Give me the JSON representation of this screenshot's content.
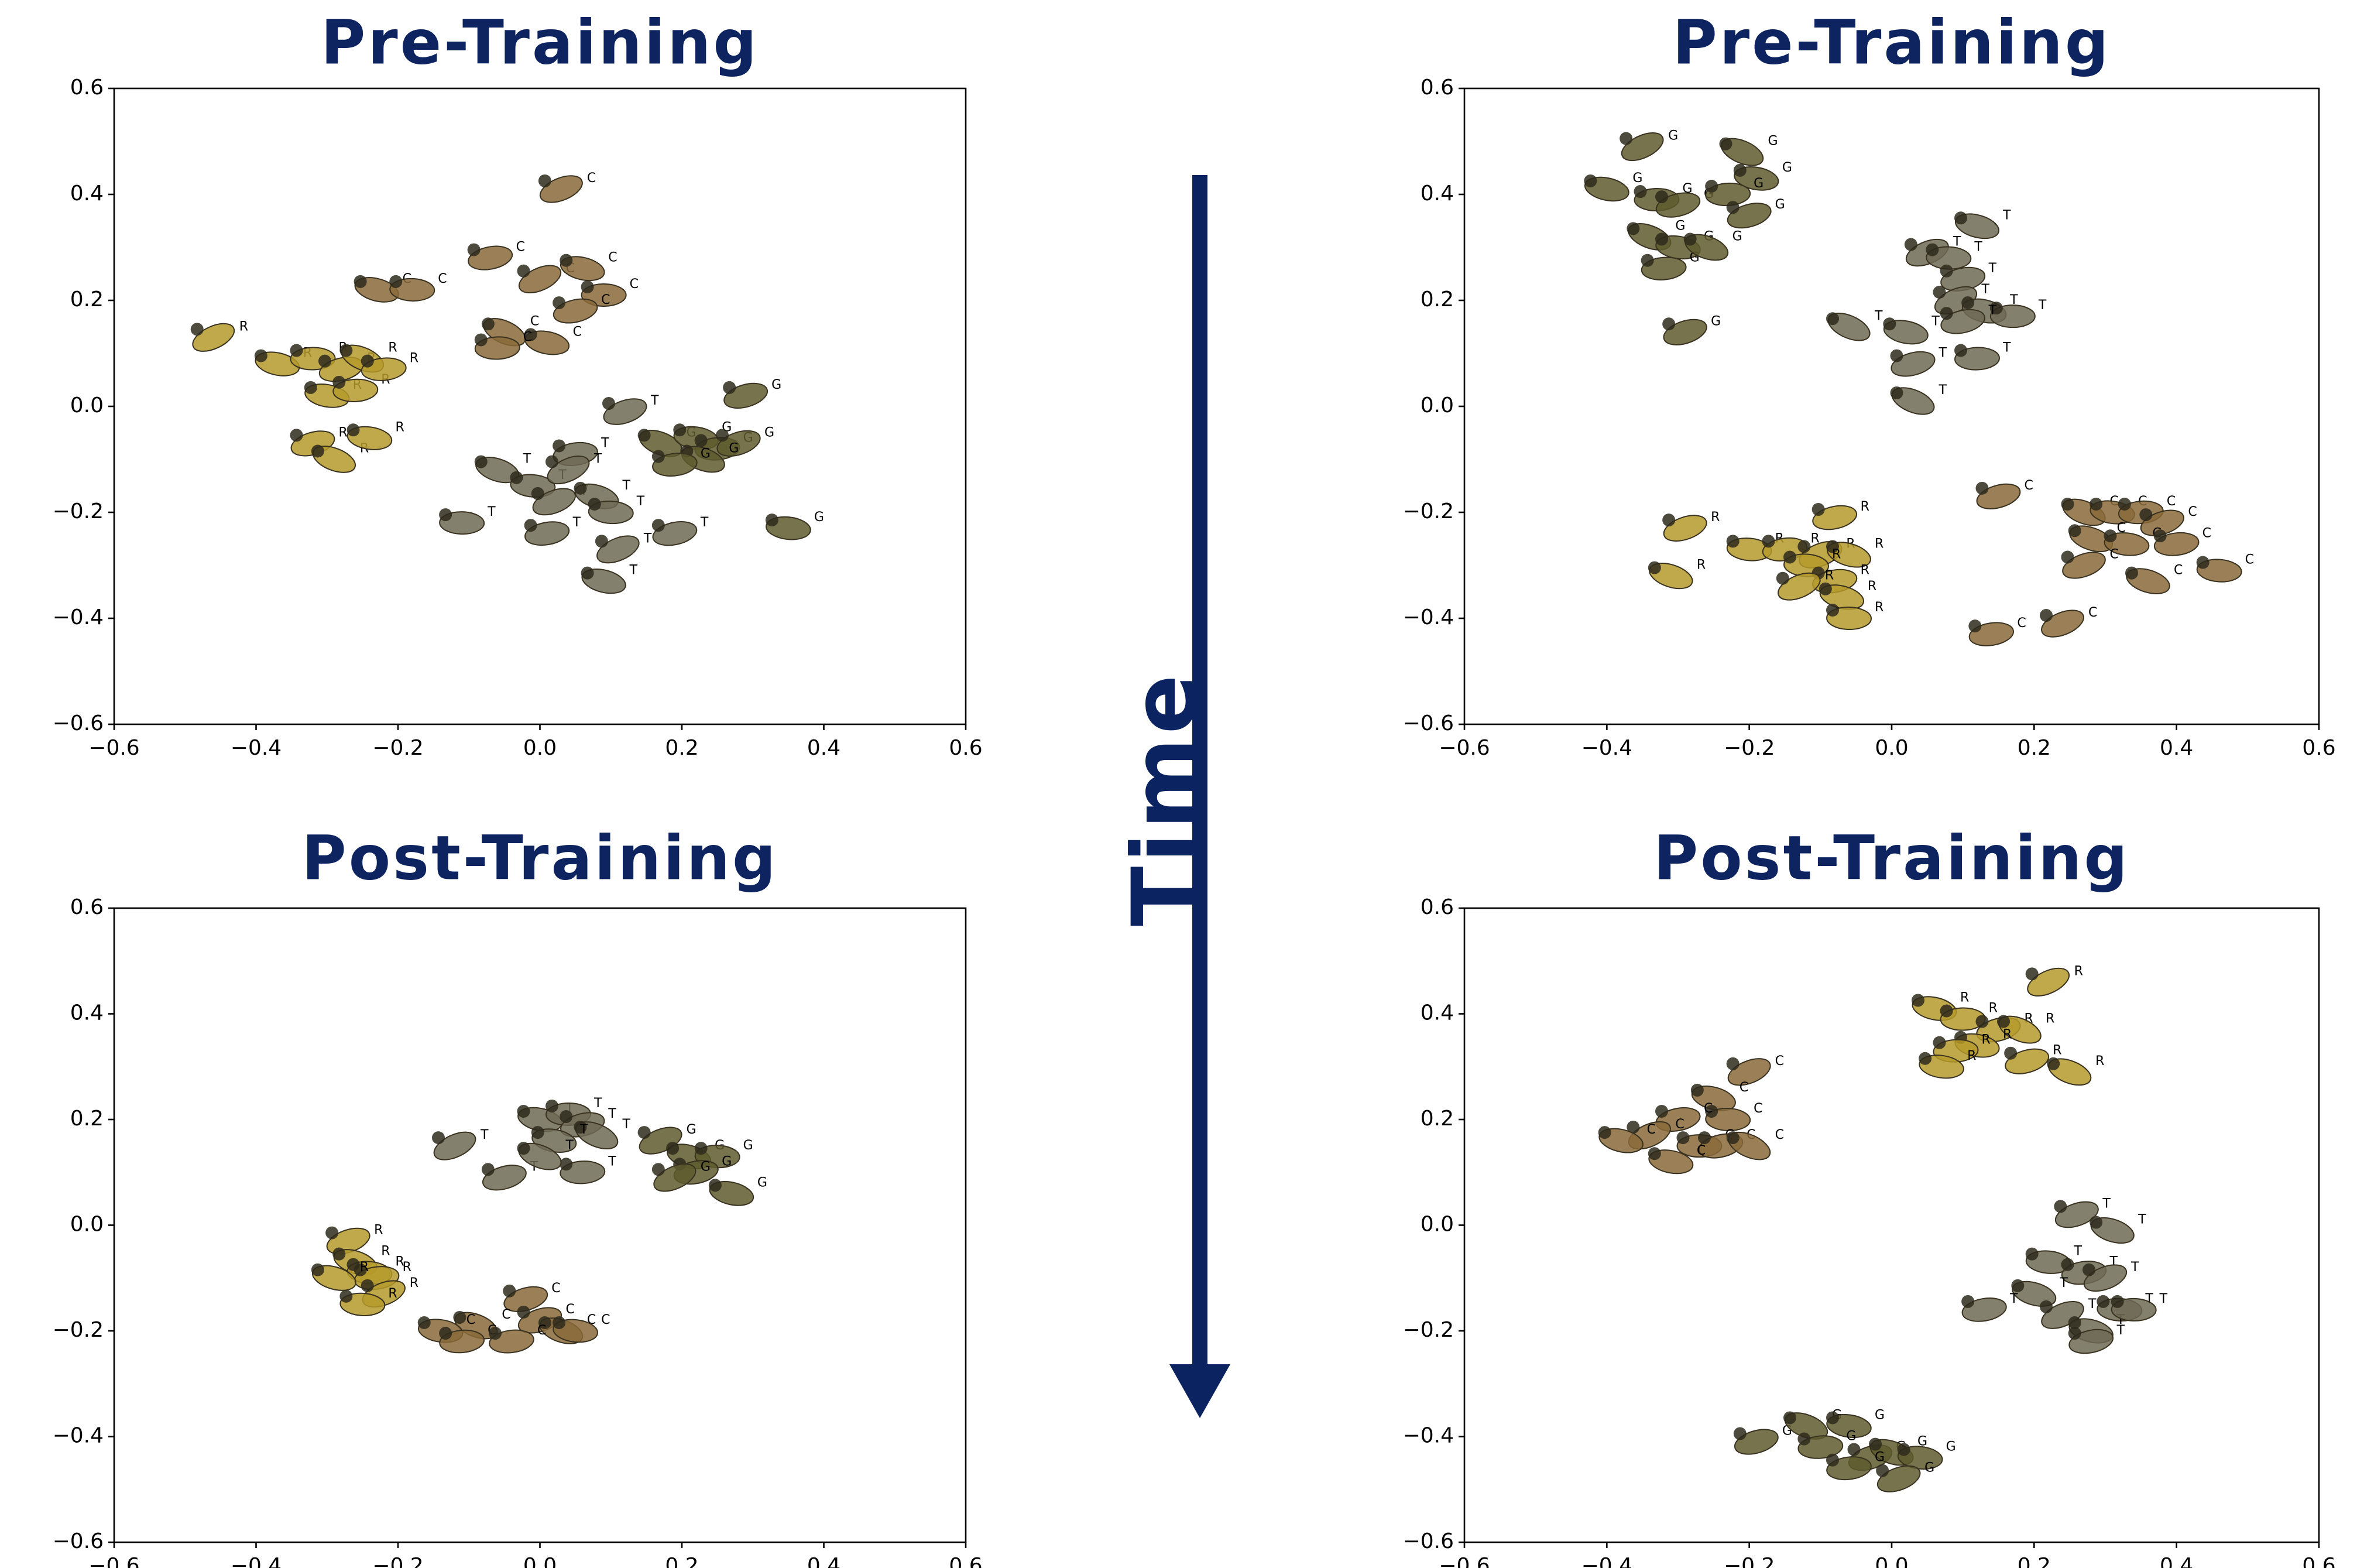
{
  "annotation": "Time",
  "chart_data": [
    {
      "type": "scatter",
      "title": "Pre-Training",
      "xlim": [
        -0.6,
        0.6
      ],
      "ylim": [
        -0.6,
        0.6
      ],
      "xticks": [
        {
          "value": -0.6,
          "label": "−0.6"
        },
        {
          "value": -0.4,
          "label": "−0.4"
        },
        {
          "value": -0.2,
          "label": "−0.2"
        },
        {
          "value": 0,
          "label": "0.0"
        },
        0.2,
        0.4,
        0.6
      ],
      "yticks": [
        {
          "value": -0.6,
          "label": "−0.6"
        },
        {
          "value": -0.4,
          "label": "−0.4"
        },
        {
          "value": -0.2,
          "label": "−0.2"
        },
        {
          "value": 0,
          "label": "0.0"
        },
        0.2,
        0.4,
        0.6
      ],
      "series": [
        {
          "name": "R",
          "color": "#b59a2a",
          "x": [
            -0.46,
            -0.37,
            -0.32,
            -0.28,
            -0.25,
            -0.3,
            -0.26,
            -0.32,
            -0.29,
            -0.24,
            -0.22
          ],
          "values": [
            0.13,
            0.08,
            0.09,
            0.07,
            0.09,
            0.02,
            0.03,
            -0.07,
            -0.1,
            -0.06,
            0.07
          ]
        },
        {
          "name": "C",
          "color": "#8a6a3a",
          "x": [
            0.03,
            -0.23,
            -0.18,
            -0.07,
            0.0,
            0.06,
            0.09,
            0.05,
            -0.05,
            0.01,
            -0.06
          ],
          "values": [
            0.41,
            0.22,
            0.22,
            0.28,
            0.24,
            0.26,
            0.21,
            0.18,
            0.14,
            0.12,
            0.11
          ]
        },
        {
          "name": "T",
          "color": "#6f6a55",
          "x": [
            0.12,
            -0.06,
            -0.01,
            0.05,
            0.02,
            0.08,
            0.1,
            0.01,
            0.11,
            0.09,
            -0.11,
            0.19,
            0.04
          ],
          "values": [
            -0.01,
            -0.12,
            -0.15,
            -0.09,
            -0.18,
            -0.17,
            -0.2,
            -0.24,
            -0.27,
            -0.33,
            -0.22,
            -0.24,
            -0.12
          ]
        },
        {
          "name": "G",
          "color": "#5e5a2e",
          "x": [
            0.29,
            0.17,
            0.22,
            0.25,
            0.28,
            0.23,
            0.35,
            0.19
          ],
          "values": [
            0.02,
            -0.07,
            -0.06,
            -0.08,
            -0.07,
            -0.1,
            -0.23,
            -0.11
          ]
        }
      ]
    },
    {
      "type": "scatter",
      "title": "Pre-Training",
      "xlim": [
        -0.6,
        0.6
      ],
      "ylim": [
        -0.6,
        0.6
      ],
      "xticks": [
        {
          "value": -0.6,
          "label": "−0.6"
        },
        {
          "value": -0.4,
          "label": "−0.4"
        },
        {
          "value": -0.2,
          "label": "−0.2"
        },
        {
          "value": 0,
          "label": "0.0"
        },
        0.2,
        0.4,
        0.6
      ],
      "yticks": [
        {
          "value": -0.6,
          "label": "−0.6"
        },
        {
          "value": -0.4,
          "label": "−0.4"
        },
        {
          "value": -0.2,
          "label": "−0.2"
        },
        {
          "value": 0,
          "label": "0.0"
        },
        0.2,
        0.4,
        0.6
      ],
      "series": [
        {
          "name": "G",
          "color": "#5e5a2e",
          "x": [
            -0.35,
            -0.4,
            -0.33,
            -0.3,
            -0.21,
            -0.19,
            -0.23,
            -0.2,
            -0.34,
            -0.3,
            -0.32,
            -0.29,
            -0.26
          ],
          "values": [
            0.49,
            0.41,
            0.39,
            0.38,
            0.48,
            0.43,
            0.4,
            0.36,
            0.32,
            0.3,
            0.26,
            0.14,
            0.3
          ]
        },
        {
          "name": "T",
          "color": "#6f6a55",
          "x": [
            0.05,
            0.12,
            0.08,
            0.1,
            0.09,
            0.13,
            0.17,
            0.1,
            -0.06,
            0.02,
            0.12,
            0.03,
            0.03
          ],
          "values": [
            0.29,
            0.34,
            0.28,
            0.24,
            0.2,
            0.18,
            0.17,
            0.16,
            0.15,
            0.14,
            0.09,
            0.08,
            0.01
          ]
        },
        {
          "name": "R",
          "color": "#b59a2a",
          "x": [
            -0.29,
            -0.31,
            -0.2,
            -0.15,
            -0.1,
            -0.06,
            -0.12,
            -0.08,
            -0.13,
            -0.07,
            -0.06,
            -0.08
          ],
          "values": [
            -0.23,
            -0.32,
            -0.27,
            -0.27,
            -0.28,
            -0.28,
            -0.3,
            -0.33,
            -0.34,
            -0.36,
            -0.4,
            -0.21
          ]
        },
        {
          "name": "C",
          "color": "#8a6a3a",
          "x": [
            0.15,
            0.27,
            0.31,
            0.35,
            0.38,
            0.28,
            0.33,
            0.4,
            0.27,
            0.36,
            0.46,
            0.14,
            0.24
          ],
          "values": [
            -0.17,
            -0.2,
            -0.2,
            -0.2,
            -0.22,
            -0.25,
            -0.26,
            -0.26,
            -0.3,
            -0.33,
            -0.31,
            -0.43,
            -0.41
          ]
        }
      ]
    },
    {
      "type": "scatter",
      "title": "Post-Training",
      "xlim": [
        -0.6,
        0.6
      ],
      "ylim": [
        -0.6,
        0.6
      ],
      "xticks": [
        {
          "value": -0.6,
          "label": "−0.6"
        },
        {
          "value": -0.4,
          "label": "−0.4"
        },
        {
          "value": -0.2,
          "label": "−0.2"
        },
        {
          "value": 0,
          "label": "0.0"
        },
        0.2,
        0.4,
        0.6
      ],
      "yticks": [
        {
          "value": -0.6,
          "label": "−0.6"
        },
        {
          "value": -0.4,
          "label": "−0.4"
        },
        {
          "value": -0.2,
          "label": "−0.2"
        },
        {
          "value": 0,
          "label": "0.0"
        },
        0.2,
        0.4,
        0.6
      ],
      "series": [
        {
          "name": "T",
          "color": "#6f6a55",
          "x": [
            -0.12,
            0.0,
            0.04,
            0.06,
            0.08,
            0.02,
            0.06,
            -0.05,
            0.0
          ],
          "values": [
            0.15,
            0.2,
            0.21,
            0.19,
            0.17,
            0.16,
            0.1,
            0.09,
            0.13
          ]
        },
        {
          "name": "G",
          "color": "#5e5a2e",
          "x": [
            0.17,
            0.21,
            0.25,
            0.22,
            0.19,
            0.27
          ],
          "values": [
            0.16,
            0.13,
            0.13,
            0.1,
            0.09,
            0.06
          ]
        },
        {
          "name": "R",
          "color": "#b59a2a",
          "x": [
            -0.27,
            -0.26,
            -0.24,
            -0.23,
            -0.22,
            -0.29,
            -0.25
          ],
          "values": [
            -0.03,
            -0.07,
            -0.09,
            -0.1,
            -0.13,
            -0.1,
            -0.15
          ]
        },
        {
          "name": "C",
          "color": "#8a6a3a",
          "x": [
            -0.02,
            -0.09,
            -0.14,
            -0.11,
            0.0,
            0.03,
            0.05,
            -0.04
          ],
          "values": [
            -0.14,
            -0.19,
            -0.2,
            -0.22,
            -0.18,
            -0.2,
            -0.2,
            -0.22
          ]
        }
      ]
    },
    {
      "type": "scatter",
      "title": "Post-Training",
      "xlim": [
        -0.6,
        0.6
      ],
      "ylim": [
        -0.6,
        0.6
      ],
      "xticks": [
        {
          "value": -0.6,
          "label": "−0.6"
        },
        {
          "value": -0.4,
          "label": "−0.4"
        },
        {
          "value": -0.2,
          "label": "−0.2"
        },
        {
          "value": 0,
          "label": "0.0"
        },
        0.2,
        0.4,
        0.6
      ],
      "yticks": [
        {
          "value": -0.6,
          "label": "−0.6"
        },
        {
          "value": -0.4,
          "label": "−0.4"
        },
        {
          "value": -0.2,
          "label": "−0.2"
        },
        {
          "value": 0,
          "label": "0.0"
        },
        0.2,
        0.4,
        0.6
      ],
      "series": [
        {
          "name": "R",
          "color": "#b59a2a",
          "x": [
            0.22,
            0.06,
            0.1,
            0.15,
            0.18,
            0.12,
            0.09,
            0.19,
            0.25,
            0.07
          ],
          "values": [
            0.46,
            0.41,
            0.39,
            0.37,
            0.37,
            0.34,
            0.33,
            0.31,
            0.29,
            0.3
          ]
        },
        {
          "name": "C",
          "color": "#8a6a3a",
          "x": [
            -0.2,
            -0.25,
            -0.23,
            -0.3,
            -0.34,
            -0.38,
            -0.27,
            -0.24,
            -0.2,
            -0.31
          ],
          "values": [
            0.29,
            0.24,
            0.2,
            0.2,
            0.17,
            0.16,
            0.15,
            0.15,
            0.15,
            0.12
          ]
        },
        {
          "name": "T",
          "color": "#6f6a55",
          "x": [
            0.26,
            0.31,
            0.22,
            0.27,
            0.3,
            0.2,
            0.32,
            0.13,
            0.24,
            0.28,
            0.34,
            0.28
          ],
          "values": [
            0.02,
            -0.01,
            -0.07,
            -0.09,
            -0.1,
            -0.13,
            -0.16,
            -0.16,
            -0.17,
            -0.2,
            -0.16,
            -0.22
          ]
        },
        {
          "name": "G",
          "color": "#5e5a2e",
          "x": [
            -0.19,
            -0.12,
            -0.06,
            -0.1,
            -0.03,
            0.0,
            0.04,
            -0.06,
            0.01
          ],
          "values": [
            -0.41,
            -0.38,
            -0.38,
            -0.42,
            -0.44,
            -0.43,
            -0.44,
            -0.46,
            -0.48
          ]
        }
      ]
    }
  ]
}
